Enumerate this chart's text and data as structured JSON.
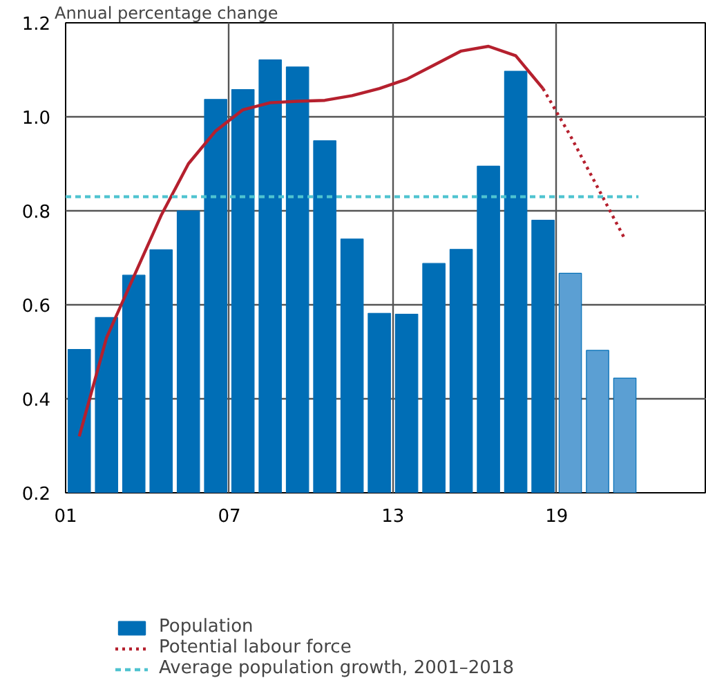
{
  "chart_data": {
    "type": "bar",
    "ylabel": "Annual percentage change",
    "xlim": [
      2001,
      2024.5
    ],
    "xticks": [
      {
        "value": 2001,
        "label": "01"
      },
      {
        "value": 2007,
        "label": "07"
      },
      {
        "value": 2013,
        "label": "13"
      },
      {
        "value": 2019,
        "label": "19"
      }
    ],
    "ylim": [
      0.2,
      1.2
    ],
    "yticks": [
      0.2,
      0.4,
      0.6,
      0.8,
      {
        "value": 1.0,
        "label": "1.0"
      },
      1.2
    ],
    "grid": true,
    "legend": "bottom",
    "series": [
      {
        "name": "Population",
        "color": "#006eb6",
        "colors": [
          "#006eb6",
          "#006eb6",
          "#006eb6",
          "#006eb6",
          "#006eb6",
          "#006eb6",
          "#006eb6",
          "#006eb6",
          "#006eb6",
          "#006eb6",
          "#006eb6",
          "#006eb6",
          "#006eb6",
          "#006eb6",
          "#006eb6",
          "#006eb6",
          "#006eb6",
          "#006eb6",
          "#5b9fd3",
          "#5b9fd3",
          "#5b9fd3"
        ],
        "x": [
          2001.5,
          2002.5,
          2003.5,
          2004.5,
          2005.5,
          2006.5,
          2007.5,
          2008.5,
          2009.5,
          2010.5,
          2011.5,
          2012.5,
          2013.5,
          2014.5,
          2015.5,
          2016.5,
          2017.5,
          2018.5,
          2019.5,
          2020.5,
          2021.5
        ],
        "values": [
          0.505,
          0.573,
          0.663,
          0.717,
          0.8,
          1.037,
          1.058,
          1.121,
          1.106,
          0.949,
          0.74,
          0.582,
          0.58,
          0.688,
          0.718,
          0.895,
          1.097,
          0.78,
          0.667,
          0.503,
          0.444
        ]
      },
      {
        "type": "line",
        "color": "#b5202e",
        "line_style": "solid",
        "x": [
          2001.5,
          2002.5,
          2003.5,
          2004.5,
          2005.5,
          2006.5,
          2007.5,
          2008.5,
          2009.5,
          2010.5,
          2011.5,
          2012.5,
          2013.5,
          2014.5,
          2015.5,
          2016.5,
          2017.5,
          2018.5
        ],
        "values": [
          0.32,
          0.53,
          0.66,
          0.79,
          0.9,
          0.97,
          1.015,
          1.03,
          1.033,
          1.035,
          1.045,
          1.06,
          1.08,
          1.11,
          1.14,
          1.15,
          1.13,
          1.06
        ]
      },
      {
        "name": "Potential labour force",
        "type": "line",
        "color": "#b5202e",
        "line_style": "dotted",
        "x": [
          2018.5,
          2019.5,
          2020.5,
          2021.5
        ],
        "values": [
          1.06,
          0.96,
          0.85,
          0.74
        ]
      },
      {
        "name": "Average population growth, 2001–2018",
        "type": "line",
        "color": "#4fc3d0",
        "line_style": "dashed",
        "x": [
          2001,
          2022
        ],
        "values": [
          0.83,
          0.83
        ]
      }
    ]
  }
}
